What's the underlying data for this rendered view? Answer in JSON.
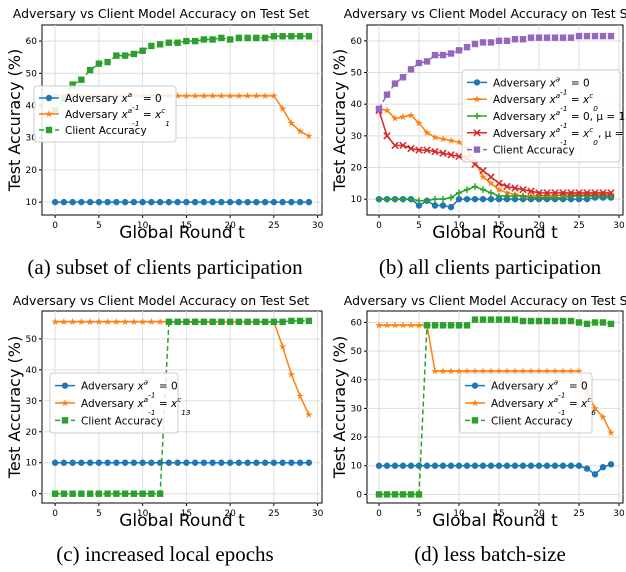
{
  "chart_data": [
    {
      "type": "line",
      "title": "Adversary vs Client Model Accuracy on Test Set",
      "xlabel": "Global Round t",
      "ylabel": "Test Accuracy (%)",
      "xlim": [
        -1.5,
        30.5
      ],
      "ylim": [
        6,
        65
      ],
      "xticks": [
        0,
        5,
        10,
        15,
        20,
        25,
        30
      ],
      "yticks": [
        10,
        20,
        30,
        40,
        50,
        60
      ],
      "legend": "center-left",
      "caption": "(a) subset of clients participation",
      "series": [
        {
          "name": "Adversary x^a_{-1} = 0",
          "color": "#1f77b4",
          "style": "solid",
          "marker": "circle",
          "x": [
            0,
            1,
            2,
            3,
            4,
            5,
            6,
            7,
            8,
            9,
            10,
            11,
            12,
            13,
            14,
            15,
            16,
            17,
            18,
            19,
            20,
            21,
            22,
            23,
            24,
            25,
            26,
            27,
            28,
            29
          ],
          "y": [
            10,
            10,
            10,
            10,
            10,
            10,
            10,
            10,
            10,
            10,
            10,
            10,
            10,
            10,
            10,
            10,
            10,
            10,
            10,
            10,
            10,
            10,
            10,
            10,
            10,
            10,
            10,
            10,
            10,
            10
          ]
        },
        {
          "name": "Adversary x^a_{-1} = x^c_1",
          "color": "#ff7f0e",
          "style": "solid",
          "marker": "star",
          "x": [
            0,
            1,
            2,
            3,
            4,
            5,
            6,
            7,
            8,
            9,
            10,
            11,
            12,
            13,
            14,
            15,
            16,
            17,
            18,
            19,
            20,
            21,
            22,
            23,
            24,
            25,
            26,
            27,
            28,
            29
          ],
          "y": [
            43,
            43,
            43,
            43,
            43,
            43,
            43,
            43,
            43,
            43,
            43,
            43,
            43,
            43,
            43,
            43,
            43,
            43,
            43,
            43,
            43,
            43,
            43,
            43,
            43,
            43,
            39,
            34.5,
            32,
            30.5
          ]
        },
        {
          "name": "Client Accuracy",
          "color": "#2ca02c",
          "style": "dashed",
          "marker": "square",
          "x": [
            0,
            1,
            2,
            3,
            4,
            5,
            6,
            7,
            8,
            9,
            10,
            11,
            12,
            13,
            14,
            15,
            16,
            17,
            18,
            19,
            20,
            21,
            22,
            23,
            24,
            25,
            26,
            27,
            28,
            29
          ],
          "y": [
            38.5,
            42,
            46.5,
            48,
            51,
            53,
            53.5,
            55.5,
            55.5,
            56,
            57,
            58.5,
            59,
            59.5,
            59.5,
            60,
            60,
            60.5,
            60.5,
            61,
            60.5,
            61,
            61,
            61,
            61,
            61.5,
            61.5,
            61.5,
            61.5,
            61.5
          ]
        }
      ]
    },
    {
      "type": "line",
      "title": "Adversary vs Client Model Accuracy on Test Set",
      "xlabel": "Global Round t",
      "ylabel": "Test Accuracy (%)",
      "xlim": [
        -1.5,
        30.5
      ],
      "ylim": [
        5,
        65
      ],
      "xticks": [
        0,
        5,
        10,
        15,
        20,
        25,
        30
      ],
      "yticks": [
        10,
        20,
        30,
        40,
        50,
        60
      ],
      "legend": "center-right",
      "caption": "(b) all clients participation",
      "series": [
        {
          "name": "Adversary x^a_{-1} = 0",
          "color": "#1f77b4",
          "style": "solid",
          "marker": "circle",
          "x": [
            0,
            1,
            2,
            3,
            4,
            5,
            6,
            7,
            8,
            9,
            10,
            11,
            12,
            13,
            14,
            15,
            16,
            17,
            18,
            19,
            20,
            21,
            22,
            23,
            24,
            25,
            26,
            27,
            28,
            29
          ],
          "y": [
            10,
            10,
            10,
            10,
            10,
            8,
            9.5,
            8,
            8,
            7.5,
            10,
            10,
            10,
            10,
            10,
            10,
            10,
            10,
            10,
            10,
            10,
            10,
            10,
            10,
            10,
            10,
            10,
            10.5,
            10.5,
            10.5
          ]
        },
        {
          "name": "Adversary x^a_{-1} = x^c_0",
          "color": "#ff7f0e",
          "style": "solid",
          "marker": "star",
          "x": [
            0,
            1,
            2,
            3,
            4,
            5,
            6,
            7,
            8,
            9,
            10,
            11,
            12,
            13,
            14,
            15,
            16,
            17,
            18,
            19,
            20,
            21,
            22,
            23,
            24,
            25,
            26,
            27,
            28,
            29
          ],
          "y": [
            38.5,
            38,
            35.5,
            36,
            36.5,
            34,
            31,
            29.5,
            29,
            28.5,
            28,
            26,
            22,
            17,
            15,
            13,
            12,
            11.5,
            11,
            11,
            11,
            11,
            11,
            11.5,
            11.5,
            11.5,
            11.5,
            11.5,
            11.5,
            11.5
          ]
        },
        {
          "name": "Adversary x^a_{-1} = 0, μ = 1",
          "color": "#2ca02c",
          "style": "solid",
          "marker": "plus",
          "x": [
            0,
            1,
            2,
            3,
            4,
            5,
            6,
            7,
            8,
            9,
            10,
            11,
            12,
            13,
            14,
            15,
            16,
            17,
            18,
            19,
            20,
            21,
            22,
            23,
            24,
            25,
            26,
            27,
            28,
            29
          ],
          "y": [
            10,
            10,
            10,
            10,
            10,
            9.5,
            9.5,
            10,
            10,
            10.5,
            12,
            13,
            14,
            13,
            12,
            11,
            11,
            11,
            11,
            10.5,
            10.5,
            10.5,
            10.5,
            10.5,
            11,
            11,
            11,
            11,
            11,
            11
          ]
        },
        {
          "name": "Adversary x^a_{-1} = x^c_0, μ = 1",
          "color": "#d62728",
          "style": "solid",
          "marker": "x",
          "x": [
            0,
            1,
            2,
            3,
            4,
            5,
            6,
            7,
            8,
            9,
            10,
            11,
            12,
            13,
            14,
            15,
            16,
            17,
            18,
            19,
            20,
            21,
            22,
            23,
            24,
            25,
            26,
            27,
            28,
            29
          ],
          "y": [
            38,
            30,
            27,
            27,
            26,
            25.5,
            25.5,
            25,
            24.5,
            24,
            23.5,
            23,
            21,
            19,
            17,
            15,
            14,
            13.5,
            13,
            12.5,
            12,
            12,
            12,
            12,
            12,
            12,
            12,
            12,
            12,
            12
          ]
        },
        {
          "name": "Client Accuracy",
          "color": "#9467bd",
          "style": "dashed",
          "marker": "square",
          "x": [
            0,
            1,
            2,
            3,
            4,
            5,
            6,
            7,
            8,
            9,
            10,
            11,
            12,
            13,
            14,
            15,
            16,
            17,
            18,
            19,
            20,
            21,
            22,
            23,
            24,
            25,
            26,
            27,
            28,
            29
          ],
          "y": [
            38.5,
            43,
            46.5,
            48.5,
            51,
            53,
            53.5,
            55.5,
            55.5,
            56,
            57,
            58,
            59,
            59.5,
            59.5,
            60,
            60,
            60.5,
            60.5,
            61,
            61,
            61,
            61,
            61,
            61,
            61.5,
            61.5,
            61.5,
            61.5,
            61.5
          ]
        }
      ]
    },
    {
      "type": "line",
      "title": "Adversary vs Client Model Accuracy on Test Set",
      "xlabel": "Global Round t",
      "ylabel": "Test Accuracy (%)",
      "xlim": [
        -1.5,
        30.5
      ],
      "ylim": [
        -3,
        59
      ],
      "xticks": [
        0,
        5,
        10,
        15,
        20,
        25,
        30
      ],
      "yticks": [
        0,
        10,
        20,
        30,
        40,
        50
      ],
      "legend": "center-left",
      "caption": "(c) increased local epochs",
      "series": [
        {
          "name": "Adversary x^a_{-1} = 0",
          "color": "#1f77b4",
          "style": "solid",
          "marker": "circle",
          "x": [
            0,
            1,
            2,
            3,
            4,
            5,
            6,
            7,
            8,
            9,
            10,
            11,
            12,
            13,
            14,
            15,
            16,
            17,
            18,
            19,
            20,
            21,
            22,
            23,
            24,
            25,
            26,
            27,
            28,
            29
          ],
          "y": [
            10,
            10,
            10,
            10,
            10,
            10,
            10,
            10,
            10,
            10,
            10,
            10,
            10,
            10,
            10,
            10,
            10,
            10,
            10,
            10,
            10,
            10,
            10,
            10,
            10,
            10,
            10,
            10,
            10,
            10
          ]
        },
        {
          "name": "Adversary x^a_{-1} = x^c_{13}",
          "color": "#ff7f0e",
          "style": "solid",
          "marker": "star",
          "x": [
            0,
            1,
            2,
            3,
            4,
            5,
            6,
            7,
            8,
            9,
            10,
            11,
            12,
            13,
            14,
            15,
            16,
            17,
            18,
            19,
            20,
            21,
            22,
            23,
            24,
            25,
            26,
            27,
            28,
            29
          ],
          "y": [
            55.5,
            55.5,
            55.5,
            55.5,
            55.5,
            55.5,
            55.5,
            55.5,
            55.5,
            55.5,
            55.5,
            55.5,
            55.5,
            55.5,
            55.5,
            55.5,
            55.5,
            55.5,
            55.5,
            55.5,
            55.5,
            55.5,
            55.5,
            55.5,
            55.5,
            55.5,
            47.5,
            38.5,
            31.5,
            25.5
          ]
        },
        {
          "name": "Client Accuracy",
          "color": "#2ca02c",
          "style": "dashed",
          "marker": "square",
          "x": [
            0,
            1,
            2,
            3,
            4,
            5,
            6,
            7,
            8,
            9,
            10,
            11,
            12,
            13,
            14,
            15,
            16,
            17,
            18,
            19,
            20,
            21,
            22,
            23,
            24,
            25,
            26,
            27,
            28,
            29
          ],
          "y": [
            0,
            0,
            0,
            0,
            0,
            0,
            0,
            0,
            0,
            0,
            0,
            0,
            0,
            55.5,
            55.5,
            55.5,
            55.5,
            55.5,
            55.5,
            55.5,
            55.5,
            55.5,
            55.5,
            55.5,
            55.5,
            55.5,
            55.5,
            55.8,
            55.8,
            55.8
          ]
        }
      ]
    },
    {
      "type": "line",
      "title": "Adversary vs Client Model Accuracy on Test Set",
      "xlabel": "Global Round t",
      "ylabel": "Test Accuracy (%)",
      "xlim": [
        -1.5,
        30.5
      ],
      "ylim": [
        -3,
        64
      ],
      "xticks": [
        0,
        5,
        10,
        15,
        20,
        25,
        30
      ],
      "yticks": [
        0,
        10,
        20,
        30,
        40,
        50,
        60
      ],
      "legend": "center-right",
      "caption": "(d) less batch-size",
      "series": [
        {
          "name": "Adversary x^a_{-1} = 0",
          "color": "#1f77b4",
          "style": "solid",
          "marker": "circle",
          "x": [
            0,
            1,
            2,
            3,
            4,
            5,
            6,
            7,
            8,
            9,
            10,
            11,
            12,
            13,
            14,
            15,
            16,
            17,
            18,
            19,
            20,
            21,
            22,
            23,
            24,
            25,
            26,
            27,
            28,
            29
          ],
          "y": [
            10,
            10,
            10,
            10,
            10,
            10,
            10,
            10,
            10,
            10,
            10,
            10,
            10,
            10,
            10,
            10,
            10,
            10,
            10,
            10,
            10,
            10,
            10,
            10,
            10,
            10,
            9,
            7,
            9.5,
            10.5
          ]
        },
        {
          "name": "Adversary x^a_{-1} = x^c_6",
          "color": "#ff7f0e",
          "style": "solid",
          "marker": "star",
          "x": [
            0,
            1,
            2,
            3,
            4,
            5,
            6,
            7,
            8,
            9,
            10,
            11,
            12,
            13,
            14,
            15,
            16,
            17,
            18,
            19,
            20,
            21,
            22,
            23,
            24,
            25,
            26,
            27,
            28,
            29
          ],
          "y": [
            59,
            59,
            59,
            59,
            59,
            59,
            59,
            43,
            43,
            43,
            43,
            43,
            43,
            43,
            43,
            43,
            43,
            43,
            43,
            43,
            43,
            43,
            43,
            43,
            43,
            43,
            36,
            30,
            27,
            21.5
          ]
        },
        {
          "name": "Client Accuracy",
          "color": "#2ca02c",
          "style": "dashed",
          "marker": "square",
          "x": [
            0,
            1,
            2,
            3,
            4,
            5,
            6,
            7,
            8,
            9,
            10,
            11,
            12,
            13,
            14,
            15,
            16,
            17,
            18,
            19,
            20,
            21,
            22,
            23,
            24,
            25,
            26,
            27,
            28,
            29
          ],
          "y": [
            0,
            0,
            0,
            0,
            0,
            0,
            59,
            59,
            59,
            59,
            59,
            59,
            61,
            61,
            61,
            61,
            61,
            61,
            60.5,
            60.5,
            60.5,
            60.5,
            60.5,
            60.5,
            60.5,
            60,
            59.5,
            60,
            60,
            59.5
          ]
        }
      ]
    }
  ]
}
